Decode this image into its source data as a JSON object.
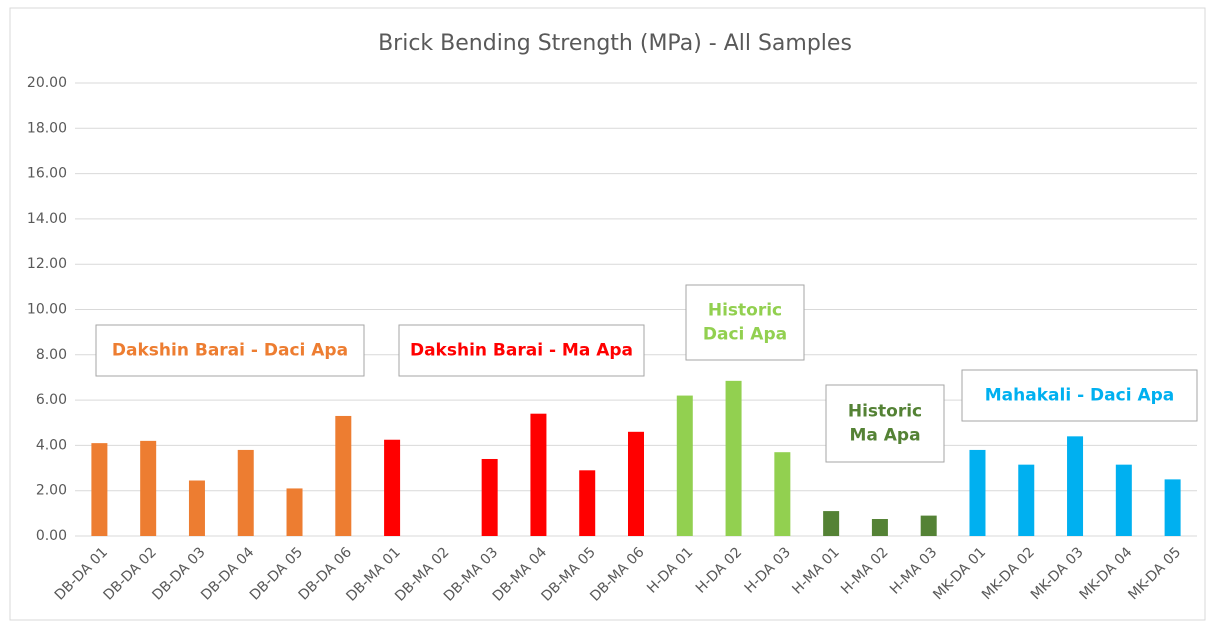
{
  "chart_data": {
    "type": "bar",
    "title": "Brick Bending Strength (MPa) - All Samples",
    "categories": [
      "DB-DA 01",
      "DB-DA 02",
      "DB-DA 03",
      "DB-DA 04",
      "DB-DA 05",
      "DB-DA 06",
      "DB-MA 01",
      "DB-MA 02",
      "DB-MA 03",
      "DB-MA 04",
      "DB-MA 05",
      "DB-MA 06",
      "H-DA 01",
      "H-DA 02",
      "H-DA 03",
      "H-MA 01",
      "H-MA 02",
      "H-MA 03",
      "MK-DA 01",
      "MK-DA 02",
      "MK-DA 03",
      "MK-DA 04",
      "MK-DA 05"
    ],
    "values": [
      4.1,
      4.2,
      2.45,
      3.8,
      2.1,
      5.3,
      4.25,
      null,
      3.4,
      5.4,
      2.9,
      4.6,
      6.2,
      6.85,
      3.7,
      1.1,
      0.75,
      0.9,
      3.8,
      3.15,
      4.4,
      3.15,
      2.5
    ],
    "colors": [
      "#ed7d31",
      "#ed7d31",
      "#ed7d31",
      "#ed7d31",
      "#ed7d31",
      "#ed7d31",
      "#ff0000",
      "#ff0000",
      "#ff0000",
      "#ff0000",
      "#ff0000",
      "#ff0000",
      "#92d050",
      "#92d050",
      "#92d050",
      "#548235",
      "#548235",
      "#548235",
      "#00b0f0",
      "#00b0f0",
      "#00b0f0",
      "#00b0f0",
      "#00b0f0"
    ],
    "ylim": [
      0,
      20
    ],
    "yticks": [
      {
        "value": 0,
        "label": "0.00"
      },
      {
        "value": 2,
        "label": "2.00"
      },
      {
        "value": 4,
        "label": "4.00"
      },
      {
        "value": 6,
        "label": "6.00"
      },
      {
        "value": 8,
        "label": "8.00"
      },
      {
        "value": 10,
        "label": "10.00"
      },
      {
        "value": 12,
        "label": "12.00"
      },
      {
        "value": 14,
        "label": "14.00"
      },
      {
        "value": 16,
        "label": "16.00"
      },
      {
        "value": 18,
        "label": "18.00"
      },
      {
        "value": 20,
        "label": "20.00"
      }
    ],
    "grid": true,
    "annotations": [
      {
        "lines": [
          "Dakshin Barai - Daci Apa"
        ],
        "color": "#ed7d31"
      },
      {
        "lines": [
          "Dakshin Barai - Ma Apa"
        ],
        "color": "#ff0000"
      },
      {
        "lines": [
          "Historic",
          "Daci Apa"
        ],
        "color": "#92d050"
      },
      {
        "lines": [
          "Historic",
          "Ma Apa"
        ],
        "color": "#548235"
      },
      {
        "lines": [
          "Mahakali - Daci Apa"
        ],
        "color": "#00b0f0"
      }
    ]
  }
}
